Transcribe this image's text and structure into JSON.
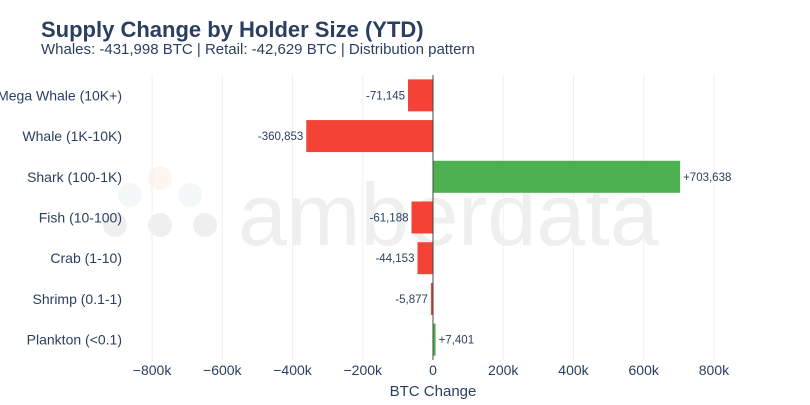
{
  "title": "Supply Change by Holder Size (YTD)",
  "subtitle": "Whales: -431,998 BTC | Retail: -42,629 BTC | Distribution pattern",
  "watermark": "amberdata",
  "chart_data": {
    "type": "bar",
    "orientation": "horizontal",
    "categories": [
      "Mega Whale (10K+)",
      "Whale (1K-10K)",
      "Shark (100-1K)",
      "Fish (10-100)",
      "Crab (1-10)",
      "Shrimp (0.1-1)",
      "Plankton (<0.1)"
    ],
    "values": [
      -71145,
      -360853,
      703638,
      -61188,
      -44153,
      -5877,
      7401
    ],
    "data_labels": [
      "-71,145",
      "-360,853",
      "+703,638",
      "-61,188",
      "-44,153",
      "-5,877",
      "+7,401"
    ],
    "xlabel": "BTC Change",
    "ylabel": "",
    "xlim": [
      -860000,
      860000
    ],
    "xticks": [
      -800000,
      -600000,
      -400000,
      -200000,
      0,
      200000,
      400000,
      600000,
      800000
    ],
    "xtick_labels": [
      "−800k",
      "−600k",
      "−400k",
      "−200k",
      "0",
      "200k",
      "400k",
      "600k",
      "800k"
    ],
    "grid": true,
    "colors": {
      "positive": "#4caf50",
      "negative": "#f44336",
      "text": "#2a3f5f",
      "grid": "#eef0f4"
    }
  }
}
